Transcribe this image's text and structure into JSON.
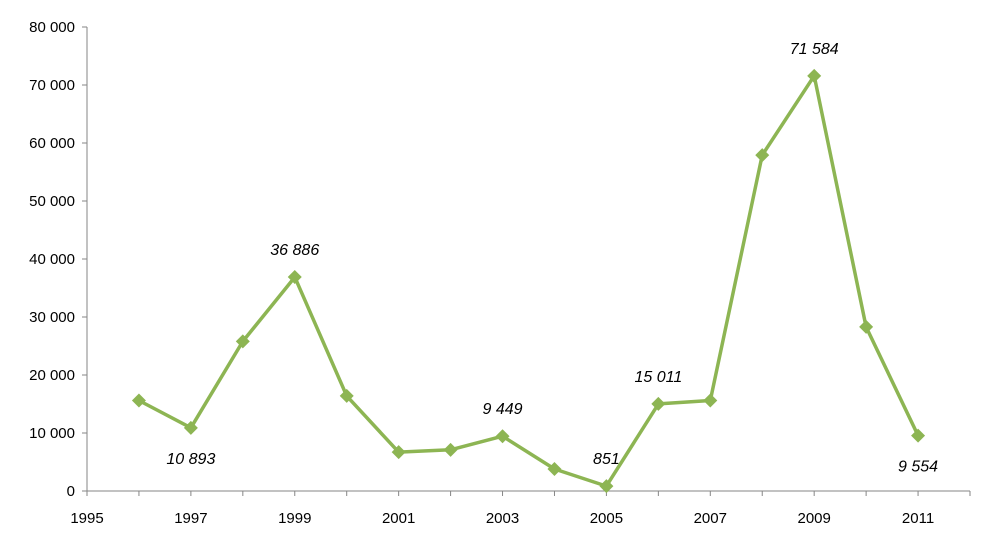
{
  "chart_data": {
    "type": "line",
    "title": "",
    "xlabel": "",
    "ylabel": "",
    "xlim": [
      1995,
      2012
    ],
    "ylim": [
      0,
      80000
    ],
    "grid": false,
    "legend": "none",
    "x_ticks": [
      1995,
      1997,
      1999,
      2001,
      2003,
      2005,
      2007,
      2009,
      2011
    ],
    "x_tick_labels": [
      "1995",
      "1997",
      "1999",
      "2001",
      "2003",
      "2005",
      "2007",
      "2009",
      "2011"
    ],
    "y_ticks": [
      0,
      10000,
      20000,
      30000,
      40000,
      50000,
      60000,
      70000,
      80000
    ],
    "y_tick_labels": [
      "0",
      "10 000",
      "20 000",
      "30 000",
      "40 000",
      "50 000",
      "60 000",
      "70 000",
      "80 000"
    ],
    "series": [
      {
        "color": "#8db553",
        "marker": "diamond",
        "x": [
          1996,
          1997,
          1998,
          1999,
          2000,
          2001,
          2002,
          2003,
          2004,
          2005,
          2006,
          2007,
          2008,
          2009,
          2010,
          2011
        ],
        "values": [
          15600,
          10893,
          25800,
          36886,
          16400,
          6700,
          7100,
          9449,
          3800,
          851,
          15011,
          15600,
          57900,
          71584,
          28300,
          9554
        ]
      }
    ],
    "annotations": [
      {
        "x": 1997,
        "y": 10893,
        "text": "10 893",
        "position": "below"
      },
      {
        "x": 1999,
        "y": 36886,
        "text": "36 886",
        "position": "above"
      },
      {
        "x": 2003,
        "y": 9449,
        "text": "9 449",
        "position": "above"
      },
      {
        "x": 2005,
        "y": 851,
        "text": "851",
        "position": "above"
      },
      {
        "x": 2006,
        "y": 15011,
        "text": "15 011",
        "position": "above"
      },
      {
        "x": 2009,
        "y": 71584,
        "text": "71 584",
        "position": "above"
      },
      {
        "x": 2011,
        "y": 9554,
        "text": "9 554",
        "position": "below"
      }
    ]
  }
}
